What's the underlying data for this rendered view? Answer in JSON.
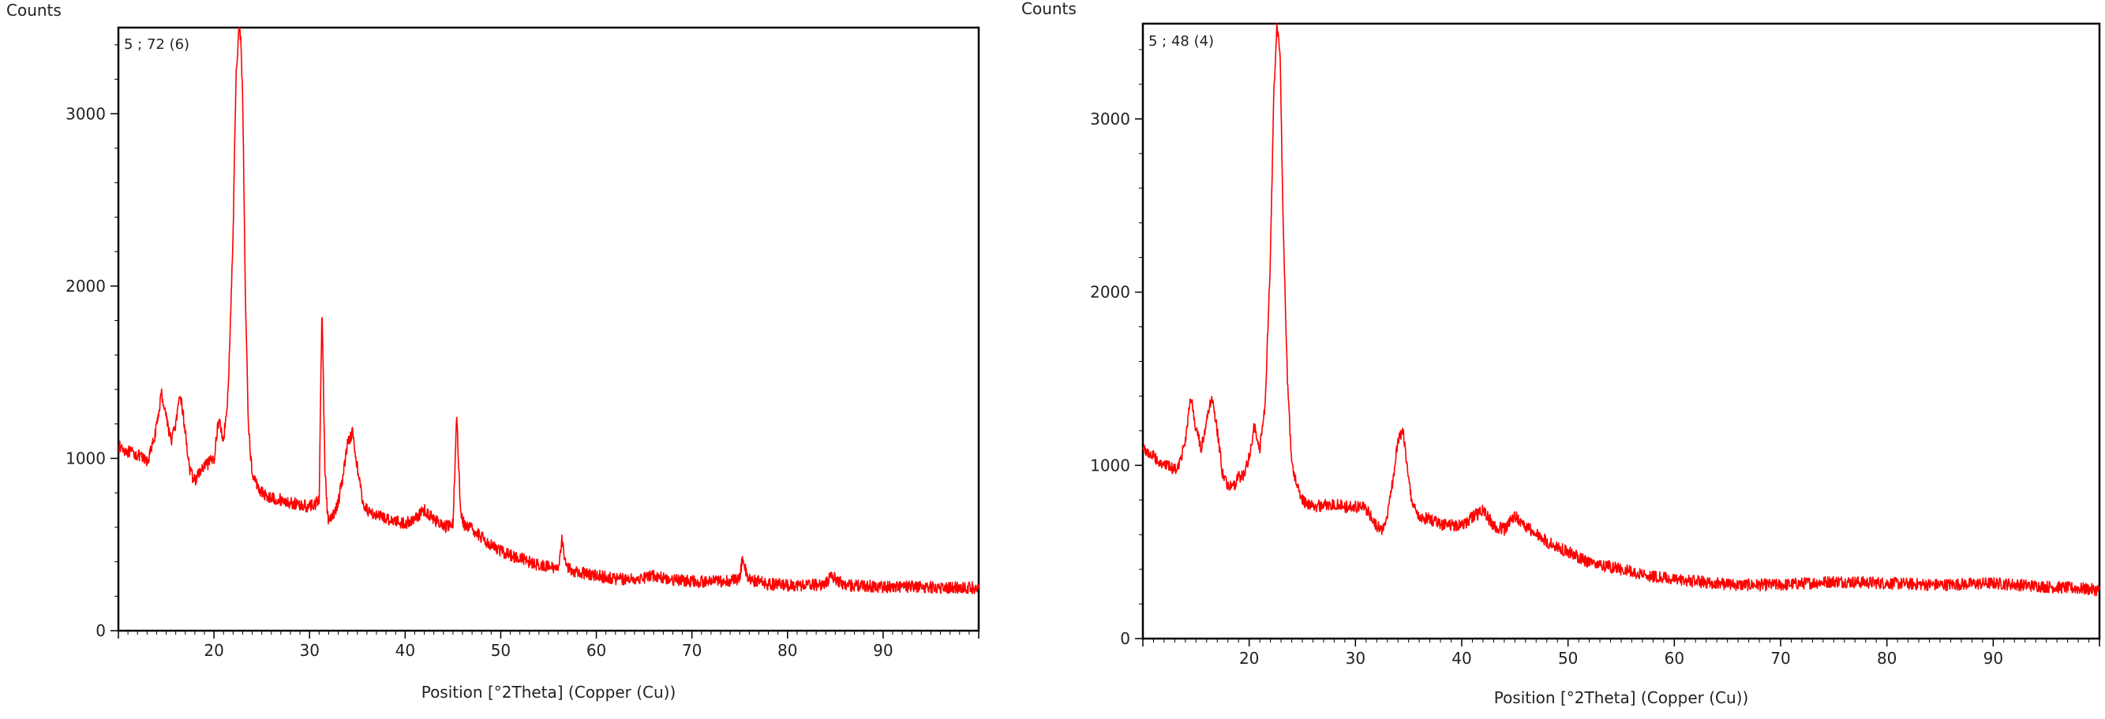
{
  "chart_data": [
    {
      "type": "line",
      "scan_label": "5 ; 72 (6)",
      "ylabel": "Counts",
      "xlabel": "Position [°2Theta] (Copper (Cu))",
      "xlim": [
        10,
        100
      ],
      "ylim": [
        0,
        3500
      ],
      "xticks": [
        20,
        30,
        40,
        50,
        60,
        70,
        80,
        90
      ],
      "yticks": [
        0,
        1000,
        2000,
        3000
      ],
      "series_color": "#ff0000",
      "noise_amplitude": 35,
      "series": [
        {
          "x": [
            10,
            11,
            12,
            13,
            13.5,
            14,
            14.5,
            15,
            15.5,
            16,
            16.5,
            17,
            17.5,
            18,
            18.5,
            19,
            20,
            20.5,
            21,
            21.5,
            22,
            22.3,
            22.6,
            22.8,
            23,
            23.3,
            23.6,
            24,
            25,
            26,
            27,
            28,
            29,
            30,
            31,
            31.3,
            31.6,
            31.9,
            32.2,
            32.6,
            33,
            33.5,
            34,
            34.5,
            35,
            35.5,
            36,
            37,
            38,
            39,
            40,
            41,
            42,
            43,
            44,
            45,
            45.4,
            45.8,
            46.3,
            47,
            48,
            49,
            50,
            52,
            54,
            56,
            56.4,
            56.8,
            58,
            60,
            62,
            64,
            66,
            68,
            70,
            72,
            74,
            75,
            75.3,
            75.8,
            78,
            80,
            82,
            84,
            84.5,
            86,
            88,
            90,
            92,
            94,
            96,
            98,
            100
          ],
          "y": [
            1070,
            1040,
            1020,
            980,
            1060,
            1180,
            1380,
            1250,
            1100,
            1200,
            1370,
            1150,
            920,
            870,
            920,
            950,
            1000,
            1230,
            1100,
            1400,
            2300,
            3200,
            3500,
            3450,
            3100,
            1900,
            1200,
            900,
            800,
            770,
            760,
            740,
            730,
            720,
            750,
            1900,
            950,
            650,
            640,
            680,
            750,
            900,
            1100,
            1150,
            950,
            760,
            700,
            670,
            650,
            640,
            620,
            650,
            700,
            650,
            600,
            620,
            1250,
            680,
            600,
            590,
            540,
            500,
            460,
            420,
            380,
            360,
            540,
            370,
            340,
            320,
            300,
            300,
            320,
            295,
            285,
            285,
            290,
            300,
            430,
            300,
            270,
            265,
            265,
            270,
            320,
            265,
            260,
            255,
            255,
            255,
            250,
            250,
            250
          ]
        }
      ]
    },
    {
      "type": "line",
      "scan_label": "5 ; 48 (4)",
      "ylabel": "Counts",
      "xlabel": "Position [°2Theta] (Copper (Cu))",
      "xlim": [
        10,
        100
      ],
      "ylim": [
        0,
        3550
      ],
      "xticks": [
        20,
        30,
        40,
        50,
        60,
        70,
        80,
        90
      ],
      "yticks": [
        0,
        1000,
        2000,
        3000
      ],
      "series_color": "#ff0000",
      "noise_amplitude": 35,
      "series": [
        {
          "x": [
            10,
            11,
            12,
            13,
            13.5,
            14,
            14.5,
            15,
            15.5,
            16,
            16.5,
            17,
            17.5,
            18,
            18.5,
            19,
            19.5,
            20,
            20.5,
            21,
            21.5,
            22,
            22.3,
            22.6,
            22.9,
            23.2,
            23.6,
            24,
            25,
            26,
            27,
            28,
            29,
            30,
            31,
            32,
            32.5,
            33,
            33.5,
            34,
            34.5,
            35,
            35.5,
            36,
            37,
            38,
            39,
            40,
            41,
            42,
            43,
            44,
            45,
            46,
            47,
            48,
            50,
            52,
            55,
            58,
            60,
            62,
            64,
            66,
            70,
            75,
            80,
            85,
            90,
            95,
            98,
            100
          ],
          "y": [
            1100,
            1050,
            1000,
            980,
            1020,
            1150,
            1400,
            1200,
            1100,
            1250,
            1400,
            1200,
            950,
            880,
            870,
            930,
            950,
            1050,
            1230,
            1100,
            1350,
            2200,
            3100,
            3550,
            3400,
            2400,
            1500,
            1000,
            800,
            760,
            770,
            780,
            760,
            760,
            750,
            650,
            620,
            720,
            900,
            1150,
            1200,
            900,
            750,
            700,
            690,
            660,
            660,
            650,
            700,
            740,
            650,
            630,
            710,
            650,
            600,
            560,
            500,
            440,
            400,
            360,
            340,
            330,
            320,
            310,
            310,
            330,
            320,
            310,
            320,
            300,
            290,
            280
          ]
        }
      ]
    }
  ]
}
